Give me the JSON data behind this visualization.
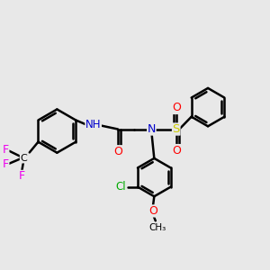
{
  "bg_color": "#e8e8e8",
  "bond_color": "#000000",
  "bond_width": 1.8,
  "atom_colors": {
    "N": "#0000cc",
    "NH": "#0000cc",
    "O": "#ff0000",
    "S": "#cccc00",
    "F": "#ee00ee",
    "Cl": "#00aa00",
    "C": "#000000"
  },
  "font_size": 8.5
}
